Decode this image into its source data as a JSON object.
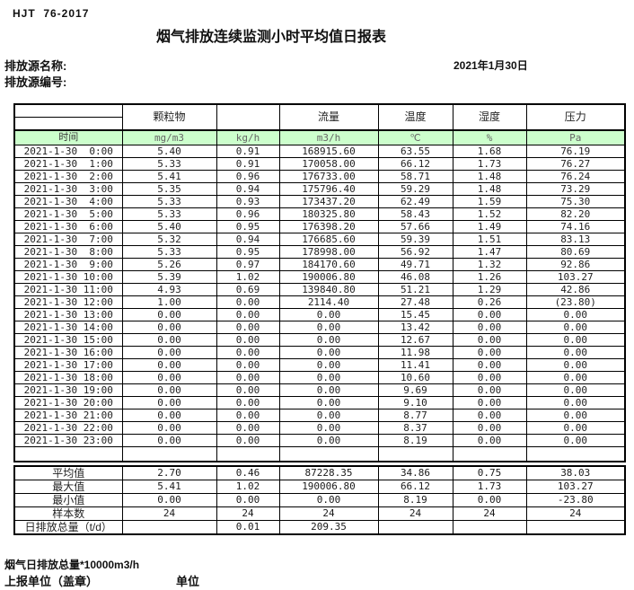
{
  "header": {
    "standard": "HJT  76-2017",
    "title": "烟气排放连续监测小时平均值日报表",
    "source_name_label": "排放源名称:",
    "source_id_label": "排放源编号:",
    "date": "2021年1月30日"
  },
  "table": {
    "group_headers": [
      "",
      "颗粒物",
      "",
      "流量",
      "温度",
      "湿度",
      "压力"
    ],
    "time_header": "时间",
    "units": [
      "mg/m3",
      "kg/h",
      "m3/h",
      "℃",
      "%",
      "Pa"
    ],
    "rows": [
      {
        "time": "2021-1-30  0:00",
        "values": [
          "5.40",
          "0.91",
          "168915.60",
          "63.55",
          "1.68",
          "76.19"
        ]
      },
      {
        "time": "2021-1-30  1:00",
        "values": [
          "5.33",
          "0.91",
          "170058.00",
          "66.12",
          "1.73",
          "76.27"
        ]
      },
      {
        "time": "2021-1-30  2:00",
        "values": [
          "5.41",
          "0.96",
          "176733.00",
          "58.71",
          "1.48",
          "76.24"
        ]
      },
      {
        "time": "2021-1-30  3:00",
        "values": [
          "5.35",
          "0.94",
          "175796.40",
          "59.29",
          "1.48",
          "73.29"
        ]
      },
      {
        "time": "2021-1-30  4:00",
        "values": [
          "5.33",
          "0.93",
          "173437.20",
          "62.49",
          "1.59",
          "75.30"
        ]
      },
      {
        "time": "2021-1-30  5:00",
        "values": [
          "5.33",
          "0.96",
          "180325.80",
          "58.43",
          "1.52",
          "82.20"
        ]
      },
      {
        "time": "2021-1-30  6:00",
        "values": [
          "5.40",
          "0.95",
          "176398.20",
          "57.66",
          "1.49",
          "74.16"
        ]
      },
      {
        "time": "2021-1-30  7:00",
        "values": [
          "5.32",
          "0.94",
          "176685.60",
          "59.39",
          "1.51",
          "83.13"
        ]
      },
      {
        "time": "2021-1-30  8:00",
        "values": [
          "5.33",
          "0.95",
          "178998.00",
          "56.92",
          "1.47",
          "80.69"
        ]
      },
      {
        "time": "2021-1-30  9:00",
        "values": [
          "5.26",
          "0.97",
          "184170.60",
          "49.71",
          "1.32",
          "92.86"
        ]
      },
      {
        "time": "2021-1-30 10:00",
        "values": [
          "5.39",
          "1.02",
          "190006.80",
          "46.08",
          "1.26",
          "103.27"
        ]
      },
      {
        "time": "2021-1-30 11:00",
        "values": [
          "4.93",
          "0.69",
          "139840.80",
          "51.21",
          "1.29",
          "42.86"
        ]
      },
      {
        "time": "2021-1-30 12:00",
        "values": [
          "1.00",
          "0.00",
          "2114.40",
          "27.48",
          "0.26",
          "(23.80)"
        ],
        "red_cols": [
          5
        ]
      },
      {
        "time": "2021-1-30 13:00",
        "values": [
          "0.00",
          "0.00",
          "0.00",
          "15.45",
          "0.00",
          "0.00"
        ]
      },
      {
        "time": "2021-1-30 14:00",
        "values": [
          "0.00",
          "0.00",
          "0.00",
          "13.42",
          "0.00",
          "0.00"
        ]
      },
      {
        "time": "2021-1-30 15:00",
        "values": [
          "0.00",
          "0.00",
          "0.00",
          "12.67",
          "0.00",
          "0.00"
        ]
      },
      {
        "time": "2021-1-30 16:00",
        "values": [
          "0.00",
          "0.00",
          "0.00",
          "11.98",
          "0.00",
          "0.00"
        ]
      },
      {
        "time": "2021-1-30 17:00",
        "values": [
          "0.00",
          "0.00",
          "0.00",
          "11.41",
          "0.00",
          "0.00"
        ]
      },
      {
        "time": "2021-1-30 18:00",
        "values": [
          "0.00",
          "0.00",
          "0.00",
          "10.60",
          "0.00",
          "0.00"
        ]
      },
      {
        "time": "2021-1-30 19:00",
        "values": [
          "0.00",
          "0.00",
          "0.00",
          "9.69",
          "0.00",
          "0.00"
        ]
      },
      {
        "time": "2021-1-30 20:00",
        "values": [
          "0.00",
          "0.00",
          "0.00",
          "9.10",
          "0.00",
          "0.00"
        ]
      },
      {
        "time": "2021-1-30 21:00",
        "values": [
          "0.00",
          "0.00",
          "0.00",
          "8.77",
          "0.00",
          "0.00"
        ]
      },
      {
        "time": "2021-1-30 22:00",
        "values": [
          "0.00",
          "0.00",
          "0.00",
          "8.37",
          "0.00",
          "0.00"
        ]
      },
      {
        "time": "2021-1-30 23:00",
        "values": [
          "0.00",
          "0.00",
          "0.00",
          "8.19",
          "0.00",
          "0.00"
        ]
      }
    ],
    "summary": [
      {
        "label": "平均值",
        "values": [
          "2.70",
          "0.46",
          "87228.35",
          "34.86",
          "0.75",
          "38.03"
        ]
      },
      {
        "label": "最大值",
        "values": [
          "5.41",
          "1.02",
          "190006.80",
          "66.12",
          "1.73",
          "103.27"
        ]
      },
      {
        "label": "最小值",
        "values": [
          "0.00",
          "0.00",
          "0.00",
          "8.19",
          "0.00",
          "-23.80"
        ]
      },
      {
        "label": "样本数",
        "values": [
          "24",
          "24",
          "24",
          "24",
          "24",
          "24"
        ]
      },
      {
        "label": "日排放总量（t/d）",
        "values": [
          "",
          "0.01",
          "209.35",
          "",
          "",
          ""
        ]
      }
    ]
  },
  "footer": {
    "note": "烟气日排放总量*10000m3/h",
    "report_unit_label": "上报单位（盖章）",
    "unit_label": "单位"
  },
  "colors": {
    "header_green": "#ccffcc",
    "alert_red": "#e60000",
    "border_black": "#000000"
  }
}
